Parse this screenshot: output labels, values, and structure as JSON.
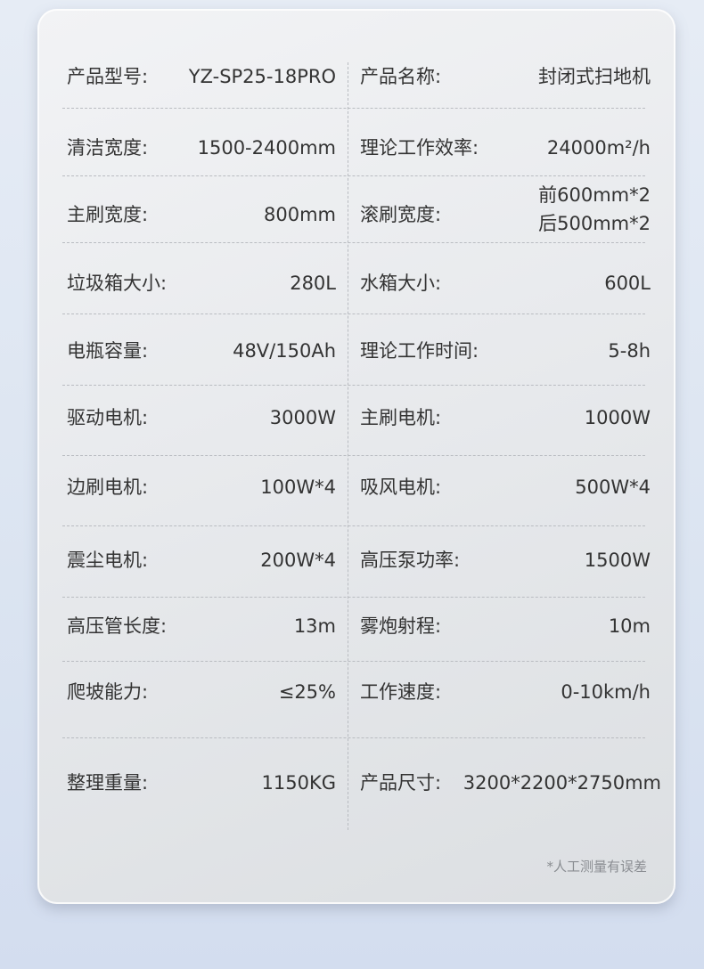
{
  "specs": [
    {
      "l1": "产品型号:",
      "v1": "YZ-SP25-18PRO",
      "l2": "产品名称:",
      "v2": "封闭式扫地机"
    },
    {
      "l1": "清洁宽度:",
      "v1": "1500-2400mm",
      "l2": "理论工作效率:",
      "v2": "24000m²/h"
    },
    {
      "l1": "主刷宽度:",
      "v1": "800mm",
      "l2": "滚刷宽度:",
      "v2": "前600mm*2",
      "v2b": "后500mm*2"
    },
    {
      "l1": "垃圾箱大小:",
      "v1": "280L",
      "l2": "水箱大小:",
      "v2": "600L"
    },
    {
      "l1": "电瓶容量:",
      "v1": "48V/150Ah",
      "l2": "理论工作时间:",
      "v2": "5-8h"
    },
    {
      "l1": "驱动电机:",
      "v1": "3000W",
      "l2": "主刷电机:",
      "v2": "1000W"
    },
    {
      "l1": "边刷电机:",
      "v1": "100W*4",
      "l2": "吸风电机:",
      "v2": "500W*4"
    },
    {
      "l1": "震尘电机:",
      "v1": "200W*4",
      "l2": "高压泵功率:",
      "v2": "1500W"
    },
    {
      "l1": "高压管长度:",
      "v1": "13m",
      "l2": "雾炮射程:",
      "v2": "10m"
    },
    {
      "l1": "爬坡能力:",
      "v1": "≤25%",
      "l2": "工作速度:",
      "v2": "0-10km/h"
    },
    {
      "l1": "整理重量:",
      "v1": "1150KG",
      "l2": "产品尺寸:",
      "v2": "3200*2200*2750mm"
    }
  ],
  "note": "*人工测量有误差"
}
